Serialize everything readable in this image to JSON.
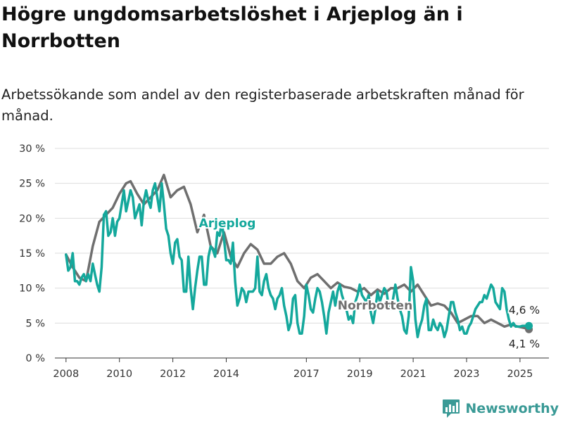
{
  "title": "Högre ungdomsarbetslöshet i Arjeplog än i Norrbotten",
  "subtitle": "Arbetssökande som andel av den registerbaserade arbetskraften månad för månad.",
  "brand": {
    "name": "Newsworthy",
    "icon": "bar-chart-logo-icon"
  },
  "colors": {
    "arjeplog": "#14a89c",
    "norrbotten": "#6f6f6f",
    "grid": "#dddddd",
    "brand": "#3a9a96"
  },
  "chart_data": {
    "type": "line",
    "title": "Högre ungdomsarbetslöshet i Arjeplog än i Norrbotten",
    "ylabel": "",
    "xlabel": "",
    "ylim": [
      0,
      30
    ],
    "xlim": [
      "2007-08",
      "2026-02"
    ],
    "y_ticks": [
      "0 %",
      "5 %",
      "10 %",
      "15 %",
      "20 %",
      "25 %",
      "30 %"
    ],
    "x_ticks": [
      "2008",
      "2010",
      "2012",
      "2014",
      "2017",
      "2019",
      "2021",
      "2023",
      "2025"
    ],
    "grid": true,
    "series_labels": [
      {
        "series": "Arjeplog",
        "text": "Arjeplog"
      },
      {
        "series": "Norrbotten",
        "text": "Norrbotten"
      }
    ],
    "end_labels": [
      {
        "series": "Arjeplog",
        "text": "4,6 %"
      },
      {
        "series": "Norrbotten",
        "text": "4,1 %"
      }
    ],
    "series": [
      {
        "name": "Norrbotten",
        "points": [
          [
            "2008-01",
            14.8
          ],
          [
            "2008-04",
            13.0
          ],
          [
            "2008-07",
            11.5
          ],
          [
            "2008-10",
            11.0
          ],
          [
            "2009-01",
            16.0
          ],
          [
            "2009-04",
            19.5
          ],
          [
            "2009-07",
            20.5
          ],
          [
            "2009-10",
            21.5
          ],
          [
            "2010-01",
            23.5
          ],
          [
            "2010-04",
            25.0
          ],
          [
            "2010-06",
            25.3
          ],
          [
            "2010-09",
            23.5
          ],
          [
            "2010-12",
            22.0
          ],
          [
            "2011-03",
            23.0
          ],
          [
            "2011-06",
            24.0
          ],
          [
            "2011-09",
            26.2
          ],
          [
            "2011-12",
            23.0
          ],
          [
            "2012-03",
            24.0
          ],
          [
            "2012-06",
            24.5
          ],
          [
            "2012-09",
            22.0
          ],
          [
            "2012-12",
            18.0
          ],
          [
            "2013-03",
            20.5
          ],
          [
            "2013-06",
            16.0
          ],
          [
            "2013-09",
            15.0
          ],
          [
            "2013-12",
            18.0
          ],
          [
            "2014-03",
            14.5
          ],
          [
            "2014-06",
            13.0
          ],
          [
            "2014-09",
            15.0
          ],
          [
            "2014-12",
            16.3
          ],
          [
            "2015-03",
            15.5
          ],
          [
            "2015-06",
            13.5
          ],
          [
            "2015-09",
            13.5
          ],
          [
            "2015-12",
            14.5
          ],
          [
            "2016-03",
            15.0
          ],
          [
            "2016-06",
            13.5
          ],
          [
            "2016-09",
            11.0
          ],
          [
            "2016-12",
            10.0
          ],
          [
            "2017-03",
            11.5
          ],
          [
            "2017-06",
            12.0
          ],
          [
            "2017-09",
            11.0
          ],
          [
            "2017-12",
            10.0
          ],
          [
            "2018-03",
            10.8
          ],
          [
            "2018-06",
            10.2
          ],
          [
            "2018-09",
            10.0
          ],
          [
            "2018-12",
            9.5
          ],
          [
            "2019-03",
            10.0
          ],
          [
            "2019-06",
            9.0
          ],
          [
            "2019-09",
            9.8
          ],
          [
            "2019-12",
            9.2
          ],
          [
            "2020-03",
            10.0
          ],
          [
            "2020-06",
            10.0
          ],
          [
            "2020-09",
            10.5
          ],
          [
            "2020-12",
            9.5
          ],
          [
            "2021-03",
            10.5
          ],
          [
            "2021-06",
            9.0
          ],
          [
            "2021-09",
            7.5
          ],
          [
            "2021-12",
            7.8
          ],
          [
            "2022-03",
            7.5
          ],
          [
            "2022-06",
            6.5
          ],
          [
            "2022-09",
            5.0
          ],
          [
            "2022-12",
            5.5
          ],
          [
            "2023-03",
            6.0
          ],
          [
            "2023-06",
            6.0
          ],
          [
            "2023-09",
            5.0
          ],
          [
            "2023-12",
            5.5
          ],
          [
            "2024-03",
            5.0
          ],
          [
            "2024-06",
            4.5
          ],
          [
            "2024-09",
            4.8
          ],
          [
            "2024-12",
            4.5
          ],
          [
            "2025-03",
            4.3
          ],
          [
            "2025-05",
            4.1
          ]
        ]
      },
      {
        "name": "Arjeplog",
        "points": [
          [
            "2008-01",
            14.8
          ],
          [
            "2008-02",
            12.5
          ],
          [
            "2008-03",
            13.0
          ],
          [
            "2008-04",
            15.0
          ],
          [
            "2008-05",
            11.0
          ],
          [
            "2008-06",
            11.0
          ],
          [
            "2008-07",
            10.5
          ],
          [
            "2008-08",
            11.5
          ],
          [
            "2008-09",
            12.0
          ],
          [
            "2008-10",
            11.0
          ],
          [
            "2008-11",
            12.0
          ],
          [
            "2008-12",
            11.0
          ],
          [
            "2009-01",
            13.5
          ],
          [
            "2009-02",
            12.0
          ],
          [
            "2009-03",
            10.5
          ],
          [
            "2009-04",
            9.5
          ],
          [
            "2009-05",
            13.0
          ],
          [
            "2009-06",
            20.5
          ],
          [
            "2009-07",
            21.0
          ],
          [
            "2009-08",
            17.5
          ],
          [
            "2009-09",
            18.0
          ],
          [
            "2009-10",
            20.0
          ],
          [
            "2009-11",
            17.5
          ],
          [
            "2009-12",
            19.5
          ],
          [
            "2010-01",
            20.0
          ],
          [
            "2010-02",
            22.0
          ],
          [
            "2010-03",
            24.0
          ],
          [
            "2010-04",
            21.0
          ],
          [
            "2010-05",
            22.5
          ],
          [
            "2010-06",
            24.0
          ],
          [
            "2010-07",
            23.0
          ],
          [
            "2010-08",
            20.0
          ],
          [
            "2010-09",
            21.0
          ],
          [
            "2010-10",
            22.0
          ],
          [
            "2010-11",
            19.0
          ],
          [
            "2010-12",
            22.5
          ],
          [
            "2011-01",
            24.0
          ],
          [
            "2011-02",
            22.5
          ],
          [
            "2011-03",
            21.5
          ],
          [
            "2011-04",
            24.0
          ],
          [
            "2011-05",
            25.0
          ],
          [
            "2011-06",
            23.0
          ],
          [
            "2011-07",
            21.0
          ],
          [
            "2011-08",
            25.0
          ],
          [
            "2011-09",
            22.0
          ],
          [
            "2011-10",
            18.5
          ],
          [
            "2011-11",
            17.5
          ],
          [
            "2011-12",
            15.0
          ],
          [
            "2012-01",
            13.5
          ],
          [
            "2012-02",
            16.5
          ],
          [
            "2012-03",
            17.0
          ],
          [
            "2012-04",
            14.5
          ],
          [
            "2012-05",
            14.0
          ],
          [
            "2012-06",
            9.5
          ],
          [
            "2012-07",
            9.5
          ],
          [
            "2012-08",
            14.5
          ],
          [
            "2012-09",
            10.0
          ],
          [
            "2012-10",
            7.0
          ],
          [
            "2012-11",
            10.0
          ],
          [
            "2012-12",
            12.5
          ],
          [
            "2013-01",
            14.5
          ],
          [
            "2013-02",
            14.5
          ],
          [
            "2013-03",
            10.5
          ],
          [
            "2013-04",
            10.5
          ],
          [
            "2013-05",
            14.5
          ],
          [
            "2013-06",
            16.0
          ],
          [
            "2013-07",
            15.5
          ],
          [
            "2013-08",
            14.5
          ],
          [
            "2013-09",
            18.0
          ],
          [
            "2013-10",
            17.5
          ],
          [
            "2013-11",
            19.5
          ],
          [
            "2013-12",
            17.0
          ],
          [
            "2014-01",
            14.0
          ],
          [
            "2014-02",
            14.0
          ],
          [
            "2014-03",
            13.5
          ],
          [
            "2014-04",
            16.5
          ],
          [
            "2014-05",
            11.0
          ],
          [
            "2014-06",
            7.5
          ],
          [
            "2014-07",
            8.5
          ],
          [
            "2014-08",
            10.0
          ],
          [
            "2014-09",
            9.5
          ],
          [
            "2014-10",
            8.0
          ],
          [
            "2014-11",
            9.5
          ],
          [
            "2014-12",
            9.5
          ],
          [
            "2015-01",
            9.5
          ],
          [
            "2015-02",
            10.0
          ],
          [
            "2015-03",
            14.5
          ],
          [
            "2015-04",
            9.5
          ],
          [
            "2015-05",
            9.0
          ],
          [
            "2015-06",
            11.0
          ],
          [
            "2015-07",
            12.0
          ],
          [
            "2015-08",
            10.0
          ],
          [
            "2015-09",
            9.0
          ],
          [
            "2015-10",
            8.5
          ],
          [
            "2015-11",
            7.0
          ],
          [
            "2015-12",
            8.5
          ],
          [
            "2016-01",
            9.0
          ],
          [
            "2016-02",
            10.0
          ],
          [
            "2016-03",
            7.5
          ],
          [
            "2016-04",
            6.0
          ],
          [
            "2016-05",
            4.0
          ],
          [
            "2016-06",
            5.0
          ],
          [
            "2016-07",
            8.5
          ],
          [
            "2016-08",
            9.0
          ],
          [
            "2016-09",
            5.0
          ],
          [
            "2016-10",
            3.5
          ],
          [
            "2016-11",
            3.5
          ],
          [
            "2016-12",
            6.0
          ],
          [
            "2017-01",
            10.5
          ],
          [
            "2017-02",
            9.0
          ],
          [
            "2017-03",
            7.0
          ],
          [
            "2017-04",
            6.5
          ],
          [
            "2017-05",
            8.5
          ],
          [
            "2017-06",
            10.0
          ],
          [
            "2017-07",
            9.5
          ],
          [
            "2017-08",
            8.0
          ],
          [
            "2017-09",
            6.0
          ],
          [
            "2017-10",
            3.5
          ],
          [
            "2017-11",
            6.5
          ],
          [
            "2017-12",
            8.0
          ],
          [
            "2018-01",
            9.5
          ],
          [
            "2018-02",
            7.5
          ],
          [
            "2018-03",
            9.5
          ],
          [
            "2018-04",
            10.5
          ],
          [
            "2018-05",
            9.0
          ],
          [
            "2018-06",
            8.0
          ],
          [
            "2018-07",
            7.0
          ],
          [
            "2018-08",
            5.5
          ],
          [
            "2018-09",
            6.0
          ],
          [
            "2018-10",
            5.0
          ],
          [
            "2018-11",
            8.0
          ],
          [
            "2018-12",
            9.0
          ],
          [
            "2019-01",
            10.5
          ],
          [
            "2019-02",
            9.0
          ],
          [
            "2019-03",
            8.5
          ],
          [
            "2019-04",
            8.0
          ],
          [
            "2019-05",
            9.0
          ],
          [
            "2019-06",
            6.5
          ],
          [
            "2019-07",
            5.0
          ],
          [
            "2019-08",
            7.0
          ],
          [
            "2019-09",
            9.5
          ],
          [
            "2019-10",
            8.0
          ],
          [
            "2019-11",
            9.0
          ],
          [
            "2019-12",
            10.0
          ],
          [
            "2020-01",
            9.5
          ],
          [
            "2020-02",
            7.5
          ],
          [
            "2020-03",
            7.0
          ],
          [
            "2020-04",
            8.5
          ],
          [
            "2020-05",
            10.5
          ],
          [
            "2020-06",
            8.5
          ],
          [
            "2020-07",
            7.0
          ],
          [
            "2020-08",
            6.0
          ],
          [
            "2020-09",
            4.0
          ],
          [
            "2020-10",
            3.5
          ],
          [
            "2020-11",
            6.0
          ],
          [
            "2020-12",
            13.0
          ],
          [
            "2021-01",
            11.0
          ],
          [
            "2021-02",
            5.5
          ],
          [
            "2021-03",
            3.0
          ],
          [
            "2021-04",
            4.5
          ],
          [
            "2021-05",
            5.5
          ],
          [
            "2021-06",
            7.5
          ],
          [
            "2021-07",
            8.5
          ],
          [
            "2021-08",
            4.0
          ],
          [
            "2021-09",
            4.0
          ],
          [
            "2021-10",
            5.5
          ],
          [
            "2021-11",
            4.5
          ],
          [
            "2021-12",
            4.0
          ],
          [
            "2022-01",
            5.0
          ],
          [
            "2022-02",
            4.5
          ],
          [
            "2022-03",
            3.0
          ],
          [
            "2022-04",
            4.0
          ],
          [
            "2022-05",
            6.0
          ],
          [
            "2022-06",
            8.0
          ],
          [
            "2022-07",
            8.0
          ],
          [
            "2022-08",
            6.5
          ],
          [
            "2022-09",
            5.5
          ],
          [
            "2022-10",
            4.0
          ],
          [
            "2022-11",
            4.5
          ],
          [
            "2022-12",
            3.5
          ],
          [
            "2023-01",
            3.5
          ],
          [
            "2023-02",
            4.5
          ],
          [
            "2023-03",
            5.0
          ],
          [
            "2023-04",
            6.0
          ],
          [
            "2023-05",
            7.0
          ],
          [
            "2023-06",
            7.5
          ],
          [
            "2023-07",
            8.0
          ],
          [
            "2023-08",
            8.0
          ],
          [
            "2023-09",
            9.0
          ],
          [
            "2023-10",
            8.5
          ],
          [
            "2023-11",
            9.5
          ],
          [
            "2023-12",
            10.5
          ],
          [
            "2024-01",
            10.0
          ],
          [
            "2024-02",
            8.0
          ],
          [
            "2024-03",
            7.5
          ],
          [
            "2024-04",
            7.0
          ],
          [
            "2024-05",
            10.0
          ],
          [
            "2024-06",
            9.5
          ],
          [
            "2024-07",
            7.0
          ],
          [
            "2024-08",
            5.5
          ],
          [
            "2024-09",
            4.5
          ],
          [
            "2024-10",
            5.0
          ],
          [
            "2024-11",
            4.5
          ],
          [
            "2024-12",
            4.5
          ],
          [
            "2025-01",
            4.5
          ],
          [
            "2025-02",
            4.6
          ],
          [
            "2025-03",
            4.6
          ],
          [
            "2025-04",
            4.6
          ],
          [
            "2025-05",
            4.6
          ]
        ]
      }
    ]
  }
}
